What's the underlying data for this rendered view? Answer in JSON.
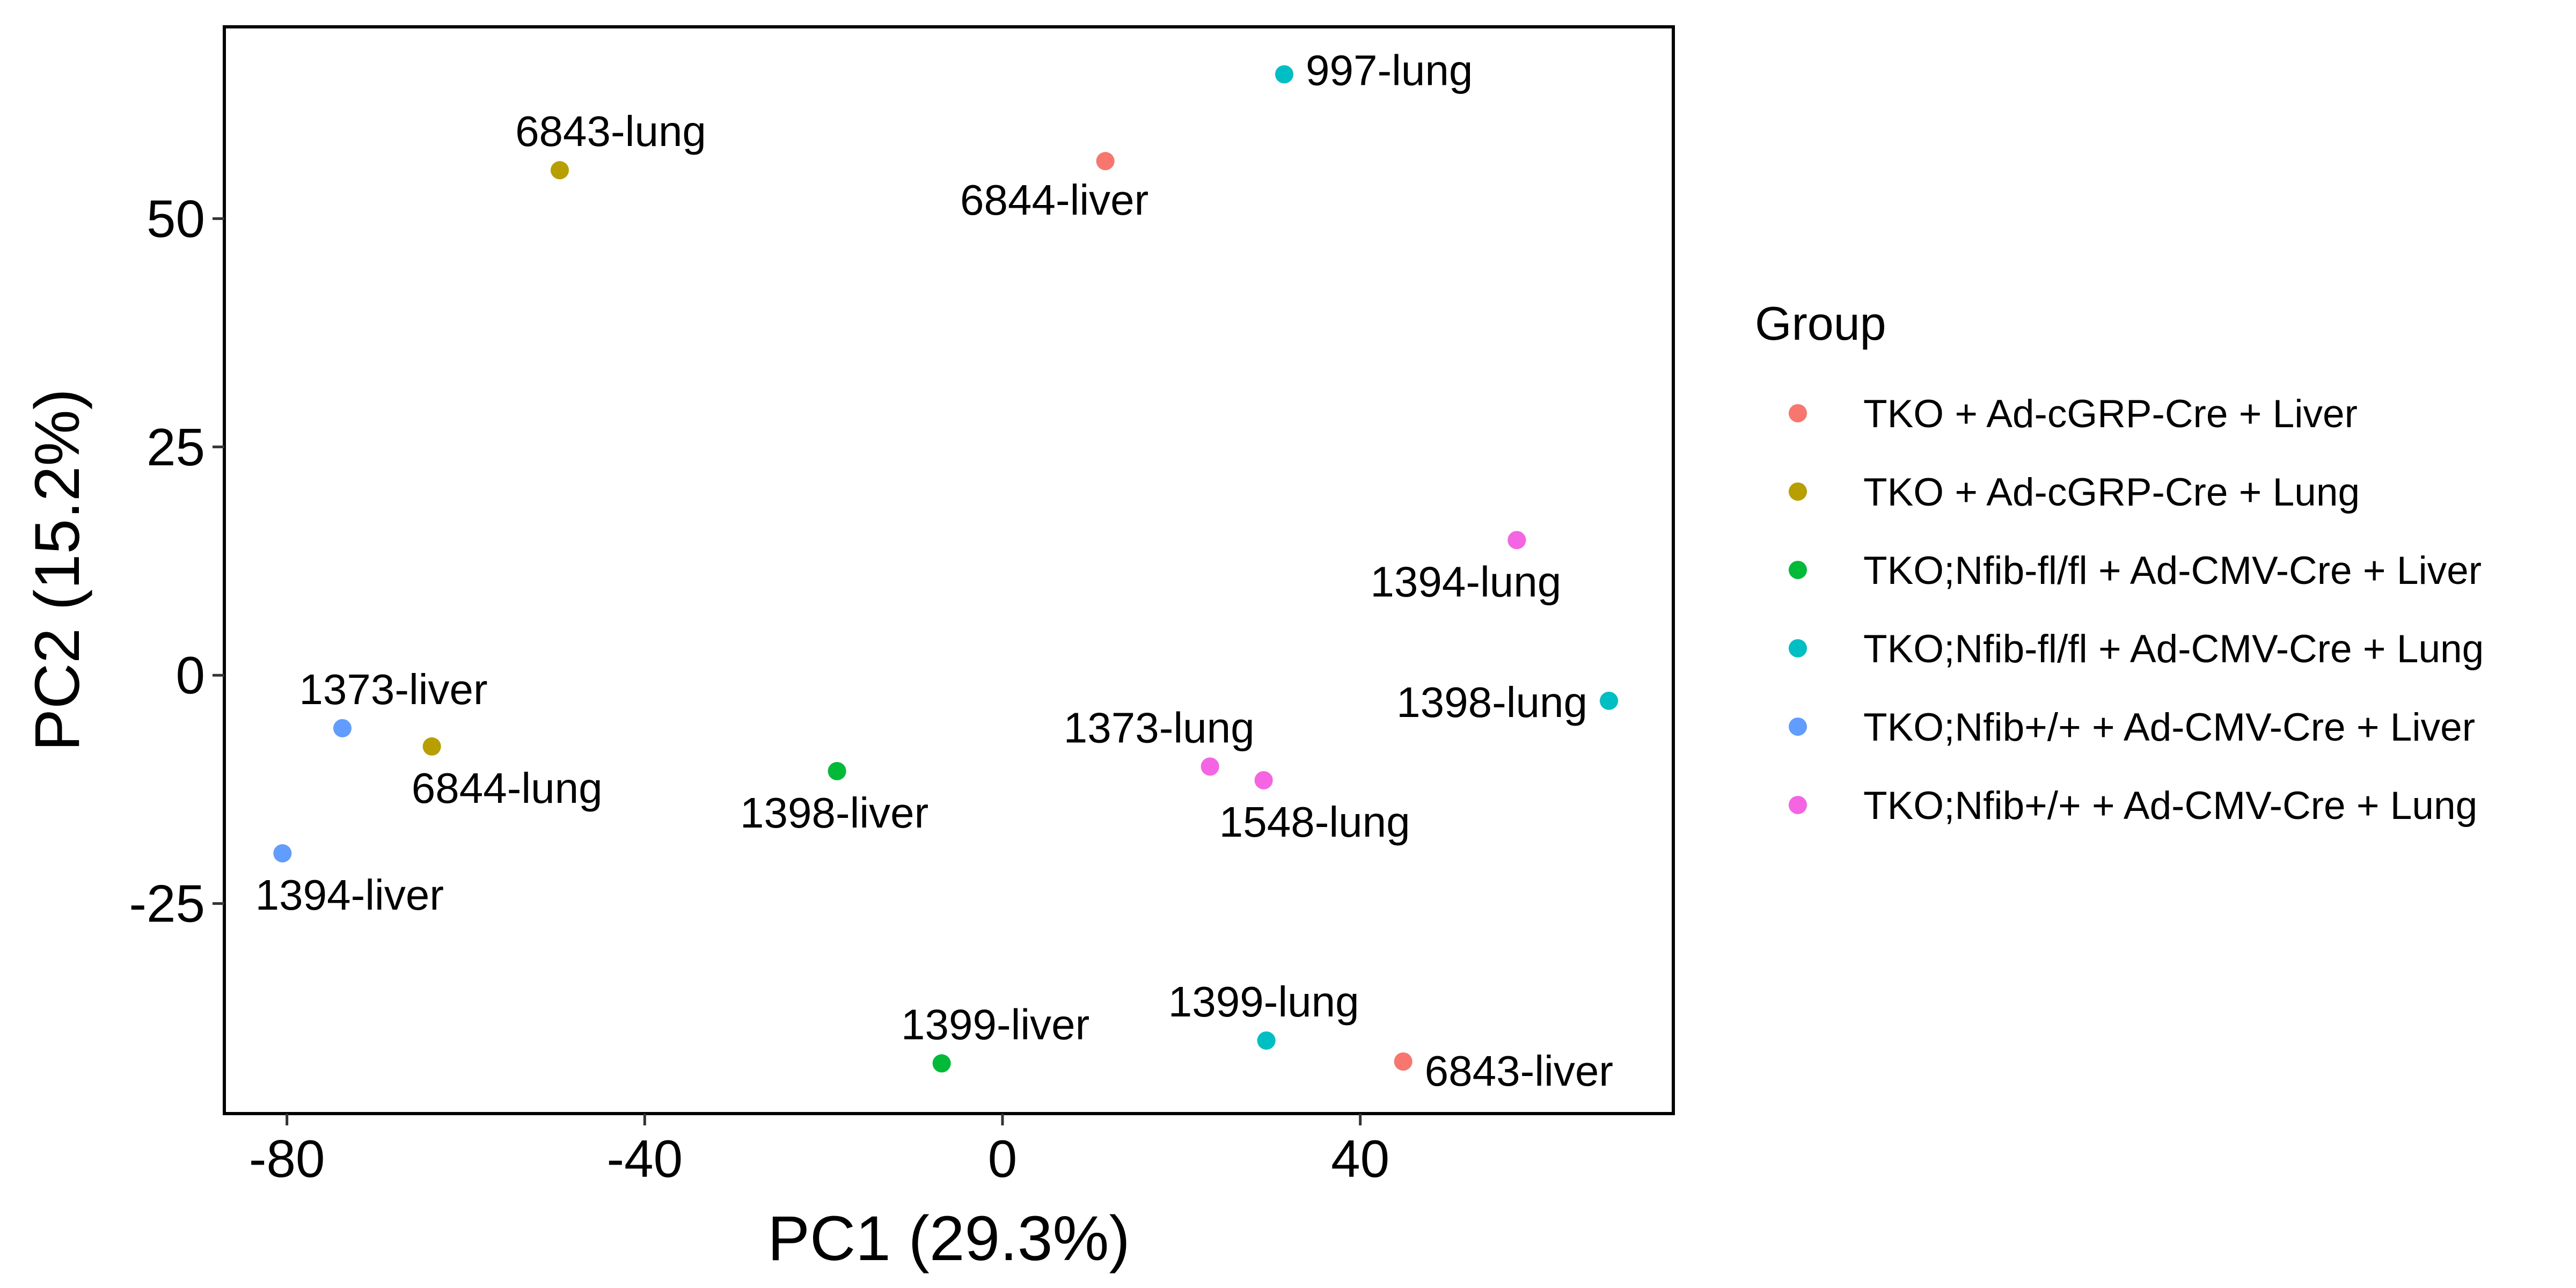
{
  "chart_data": {
    "type": "scatter",
    "xlabel": "PC1 (29.3%)",
    "ylabel": "PC2 (15.2%)",
    "xlim": [
      -87,
      75
    ],
    "ylim": [
      -48,
      71
    ],
    "xticks": [
      -80,
      -40,
      0,
      40
    ],
    "yticks": [
      -25,
      0,
      25,
      50
    ],
    "grid": false,
    "legend": {
      "title": "Group",
      "position": "right"
    },
    "series": [
      {
        "name": "TKO + Ad-cGRP-Cre + Liver",
        "color": "#F8766D",
        "points": [
          {
            "x": 11.5,
            "y": 56.3,
            "label": "6844-liver"
          },
          {
            "x": 44.8,
            "y": -42.3,
            "label": "6843-liver"
          }
        ]
      },
      {
        "name": "TKO + Ad-cGRP-Cre + Lung",
        "color": "#B79F00",
        "points": [
          {
            "x": -49.5,
            "y": 55.3,
            "label": "6843-lung"
          },
          {
            "x": -63.8,
            "y": -7.8,
            "label": "6844-lung"
          }
        ]
      },
      {
        "name": "TKO;Nfib-fl/fl + Ad-CMV-Cre + Liver",
        "color": "#00BA38",
        "points": [
          {
            "x": -18.5,
            "y": -10.5,
            "label": "1398-liver"
          },
          {
            "x": -6.8,
            "y": -42.5,
            "label": "1399-liver"
          }
        ]
      },
      {
        "name": "TKO;Nfib-fl/fl + Ad-CMV-Cre + Lung",
        "color": "#00BFC4",
        "points": [
          {
            "x": 31.5,
            "y": 65.8,
            "label": "997-lung"
          },
          {
            "x": 67.8,
            "y": -2.8,
            "label": "1398-lung"
          },
          {
            "x": 29.5,
            "y": -40.0,
            "label": "1399-lung"
          }
        ]
      },
      {
        "name": "TKO;Nfib+/+ + Ad-CMV-Cre + Liver",
        "color": "#619CFF",
        "points": [
          {
            "x": -73.8,
            "y": -5.8,
            "label": "1373-liver"
          },
          {
            "x": -80.5,
            "y": -19.5,
            "label": "1394-liver"
          }
        ]
      },
      {
        "name": "TKO;Nfib+/+ + Ad-CMV-Cre + Lung",
        "color": "#F564E3",
        "points": [
          {
            "x": 57.5,
            "y": 14.8,
            "label": "1394-lung"
          },
          {
            "x": 23.2,
            "y": -10.0,
            "label": "1373-lung"
          },
          {
            "x": 29.2,
            "y": -11.5,
            "label": "1548-lung"
          }
        ]
      }
    ]
  }
}
